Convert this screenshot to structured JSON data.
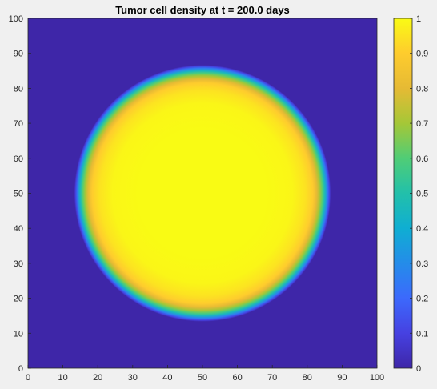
{
  "chart_data": {
    "type": "heatmap",
    "title": "Tumor cell density at t = 200.0 days",
    "xlabel": "",
    "ylabel": "",
    "xlim": [
      0,
      100
    ],
    "ylim": [
      0,
      100
    ],
    "x_ticks": [
      0,
      10,
      20,
      30,
      40,
      50,
      60,
      70,
      80,
      90,
      100
    ],
    "y_ticks": [
      0,
      10,
      20,
      30,
      40,
      50,
      60,
      70,
      80,
      90,
      100
    ],
    "colormap": "parula",
    "clim": [
      0,
      1
    ],
    "colorbar_ticks": [
      0,
      0.1,
      0.2,
      0.3,
      0.4,
      0.5,
      0.6,
      0.7,
      0.8,
      0.9,
      1
    ],
    "colorbar_labels": [
      "0",
      "0.1",
      "0.2",
      "0.3",
      "0.4",
      "0.5",
      "0.6",
      "0.7",
      "0.8",
      "0.9",
      "1"
    ],
    "field": {
      "shape": "circular",
      "center": [
        50,
        50
      ],
      "radius": 34,
      "interior_value": 1.0,
      "exterior_value": 0.0,
      "boundary_peak_value": 0.8
    },
    "grid": false,
    "colorbar_position": "right"
  }
}
